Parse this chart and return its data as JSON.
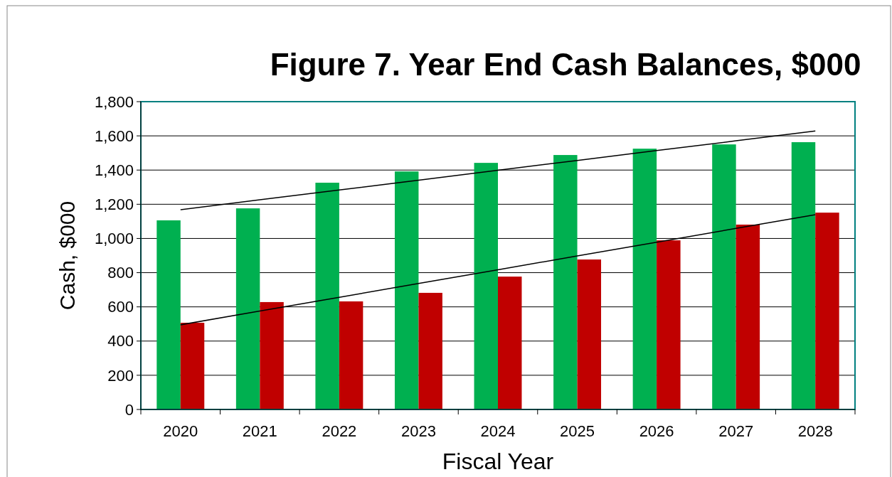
{
  "chart_data": {
    "type": "bar",
    "title": "Figure 7. Year End Cash Balances, $000",
    "xlabel": "Fiscal Year",
    "ylabel": "Cash, $000",
    "categories": [
      "2020",
      "2021",
      "2022",
      "2023",
      "2024",
      "2025",
      "2026",
      "2027",
      "2028"
    ],
    "series": [
      {
        "color": "#00b050",
        "values": [
          1106,
          1176,
          1326,
          1392,
          1442,
          1488,
          1525,
          1550,
          1563
        ]
      },
      {
        "color": "#c00000",
        "values": [
          507,
          628,
          632,
          682,
          777,
          877,
          989,
          1081,
          1151
        ]
      },
      {
        "type": "line",
        "color": "#000000",
        "values": [
          1168,
          1226,
          1283,
          1341,
          1399,
          1456,
          1514,
          1571,
          1629
        ]
      },
      {
        "type": "line",
        "color": "#000000",
        "values": [
          495,
          576,
          656,
          737,
          817,
          898,
          978,
          1059,
          1139
        ]
      }
    ],
    "ylim": [
      0,
      1800
    ],
    "yticks": [
      {
        "value": 0,
        "label": "0"
      },
      {
        "value": 200,
        "label": "200"
      },
      {
        "value": 400,
        "label": "400"
      },
      {
        "value": 600,
        "label": "600"
      },
      {
        "value": 800,
        "label": "800"
      },
      {
        "value": 1000,
        "label": "1,000"
      },
      {
        "value": 1200,
        "label": "1,200"
      },
      {
        "value": 1400,
        "label": "1,400"
      },
      {
        "value": 1600,
        "label": "1,600"
      },
      {
        "value": 1800,
        "label": "1,800"
      }
    ],
    "grid": "y"
  }
}
